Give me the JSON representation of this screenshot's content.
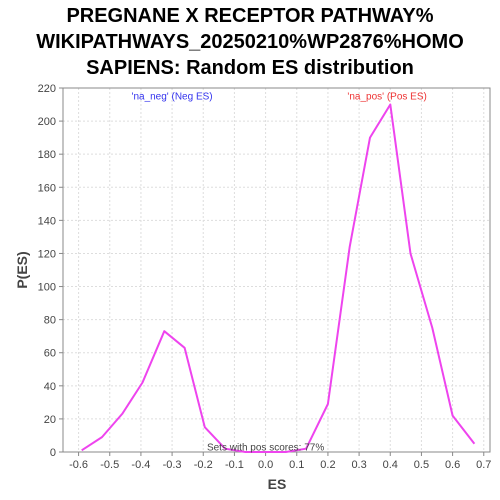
{
  "chart_data": {
    "type": "line",
    "title_lines": [
      "PREGNANE X RECEPTOR PATHWAY%",
      "WIKIPATHWAYS_20250210%WP2876%HOMO",
      "SAPIENS: Random ES distribution"
    ],
    "xlabel": "ES",
    "ylabel": "P(ES)",
    "xlim": [
      -0.65,
      0.72
    ],
    "ylim": [
      0,
      220
    ],
    "xticks": [
      -0.6,
      -0.5,
      -0.4,
      -0.3,
      -0.2,
      -0.1,
      0.0,
      0.1,
      0.2,
      0.3,
      0.4,
      0.5,
      0.6,
      0.7
    ],
    "xtick_labels": [
      "-0.6",
      "-0.5",
      "-0.4",
      "-0.3",
      "-0.2",
      "-0.1",
      "0.0",
      "0.1",
      "0.2",
      "0.3",
      "0.4",
      "0.5",
      "0.6",
      "0.7"
    ],
    "yticks": [
      0,
      20,
      40,
      60,
      80,
      100,
      120,
      140,
      160,
      180,
      200,
      220
    ],
    "ytick_labels": [
      "0",
      "20",
      "40",
      "60",
      "80",
      "100",
      "120",
      "140",
      "160",
      "180",
      "200",
      "220"
    ],
    "grid": true,
    "series": [
      {
        "color": "#ee44ee",
        "x": [
          -0.59,
          -0.525,
          -0.46,
          -0.395,
          -0.325,
          -0.26,
          -0.195,
          -0.13,
          -0.065,
          0.0,
          0.065,
          0.13,
          0.2,
          0.27,
          0.335,
          0.4,
          0.465,
          0.535,
          0.6,
          0.67
        ],
        "y": [
          1,
          9,
          23,
          42,
          73,
          63,
          15,
          2,
          0,
          0,
          0,
          2,
          29,
          124,
          190,
          210,
          120,
          75,
          22,
          5
        ]
      }
    ],
    "annotations": [
      {
        "text": "'na_neg' (Neg ES)",
        "x": -0.3,
        "y": 213,
        "color": "#3333ee"
      },
      {
        "text": "'na_pos' (Pos ES)",
        "x": 0.39,
        "y": 213,
        "color": "#ee3333"
      },
      {
        "text": "Sets with pos scores: 77%",
        "x": 0.0,
        "y": 1,
        "color": "#444444"
      }
    ]
  }
}
